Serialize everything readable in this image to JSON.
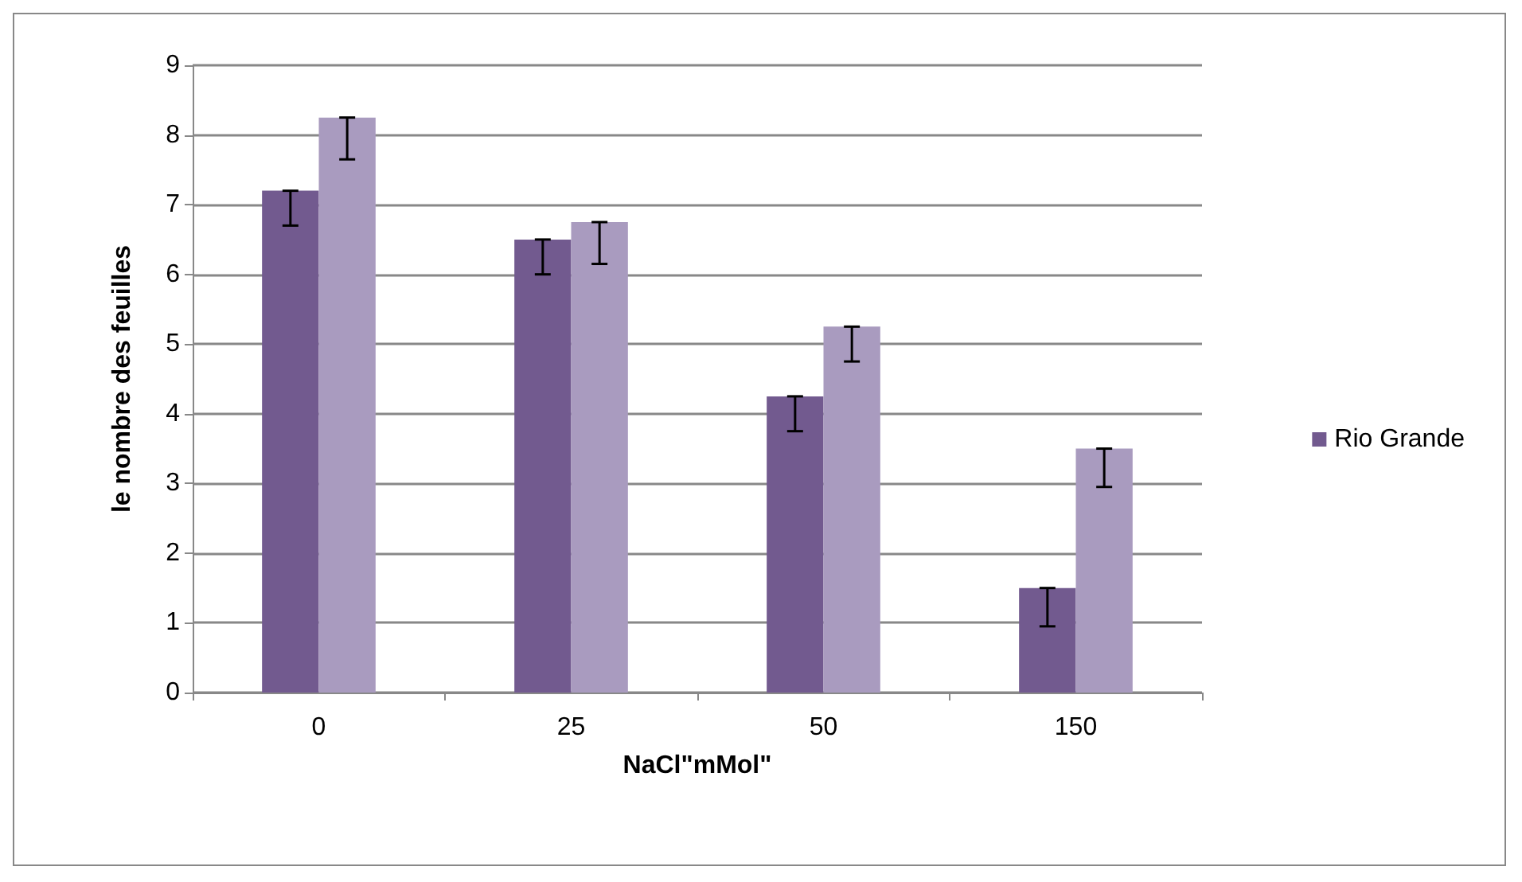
{
  "chart_data": {
    "type": "bar",
    "xlabel": "NaCl\"mMol\"",
    "ylabel": "le nombre des feuilles",
    "categories": [
      "0",
      "25",
      "50",
      "150"
    ],
    "series": [
      {
        "name": "Rio Grande",
        "color": "#725a8f",
        "values": [
          7.2,
          6.5,
          4.25,
          1.5
        ],
        "errors": [
          [
            6.7,
            7.2
          ],
          [
            6.0,
            6.5
          ],
          [
            3.75,
            4.25
          ],
          [
            0.95,
            1.5
          ]
        ]
      },
      {
        "color": "#a99bbf",
        "values": [
          8.25,
          6.75,
          5.25,
          3.5
        ],
        "errors": [
          [
            7.65,
            8.25
          ],
          [
            6.15,
            6.75
          ],
          [
            4.75,
            5.25
          ],
          [
            2.95,
            3.5
          ]
        ]
      }
    ],
    "ylim": [
      0,
      9
    ],
    "yticks": [
      0,
      1,
      2,
      3,
      4,
      5,
      6,
      7,
      8,
      9
    ],
    "grid": "y",
    "legend": "right"
  }
}
